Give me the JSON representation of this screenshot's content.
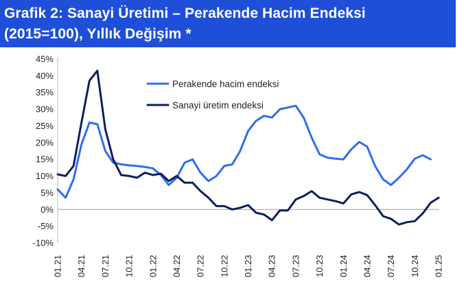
{
  "header": {
    "title_line1": "Grafik 2: Sanayi Üretimi – Perakende Hacim Endeksi",
    "title_line2": "(2015=100), Yıllık Değişim *"
  },
  "colors": {
    "banner": "#1f4fd8",
    "retail": "#2f6cf0",
    "industrial": "#0d1f5c",
    "zero_line": "#999999",
    "axis": "#bbbbbb"
  },
  "chart_data": {
    "type": "line",
    "ylim": [
      -10,
      45
    ],
    "yticks": [
      -10,
      -5,
      0,
      5,
      10,
      15,
      20,
      25,
      30,
      35,
      40,
      45
    ],
    "ytick_labels": [
      "-10%",
      "-5%",
      "0%",
      "5%",
      "10%",
      "15%",
      "20%",
      "25%",
      "30%",
      "35%",
      "40%",
      "45%"
    ],
    "x_start": "01.21",
    "x_end": "01.25",
    "xtick_labels": [
      "01.21",
      "04.21",
      "07.21",
      "10.21",
      "01.22",
      "04.22",
      "07.22",
      "10.22",
      "01.23",
      "04.23",
      "07.23",
      "10.23",
      "01.24",
      "04.24",
      "07.24",
      "10.24",
      "01.25"
    ],
    "grid": false,
    "legend_position": "top-center",
    "series": [
      {
        "name": "Perakende hacim endeksi",
        "color": "#2f6cf0",
        "values": [
          6,
          3.5,
          9,
          19.5,
          26,
          25.5,
          17.5,
          14,
          13.5,
          13.2,
          13,
          12.7,
          12.3,
          10.3,
          7.3,
          9.5,
          14,
          15,
          11,
          8.5,
          10,
          13,
          13.5,
          17.5,
          23.5,
          26.5,
          28,
          27.5,
          30,
          30.5,
          31,
          27.5,
          21.5,
          16.5,
          15.5,
          15.2,
          15,
          18,
          20.2,
          18.8,
          13,
          9,
          7.3,
          9.5,
          12,
          15.2,
          16.2,
          15
        ]
      },
      {
        "name": "Sanayi üretim endeksi",
        "color": "#0d1f5c",
        "values": [
          10.5,
          10,
          13,
          26,
          38.5,
          41.5,
          24,
          15,
          10.3,
          10,
          9.5,
          11,
          10.3,
          10.7,
          8.5,
          10,
          8,
          8,
          5.5,
          3.5,
          1,
          1,
          0,
          0.5,
          1.3,
          -1,
          -1.5,
          -3.2,
          -0.3,
          -0.3,
          3,
          4,
          5.5,
          3.5,
          3,
          2.5,
          1.8,
          4.5,
          5.2,
          4.3,
          1.3,
          -2,
          -2.8,
          -4.5,
          -3.8,
          -3.5,
          -1.2,
          2,
          3.5
        ]
      }
    ]
  }
}
